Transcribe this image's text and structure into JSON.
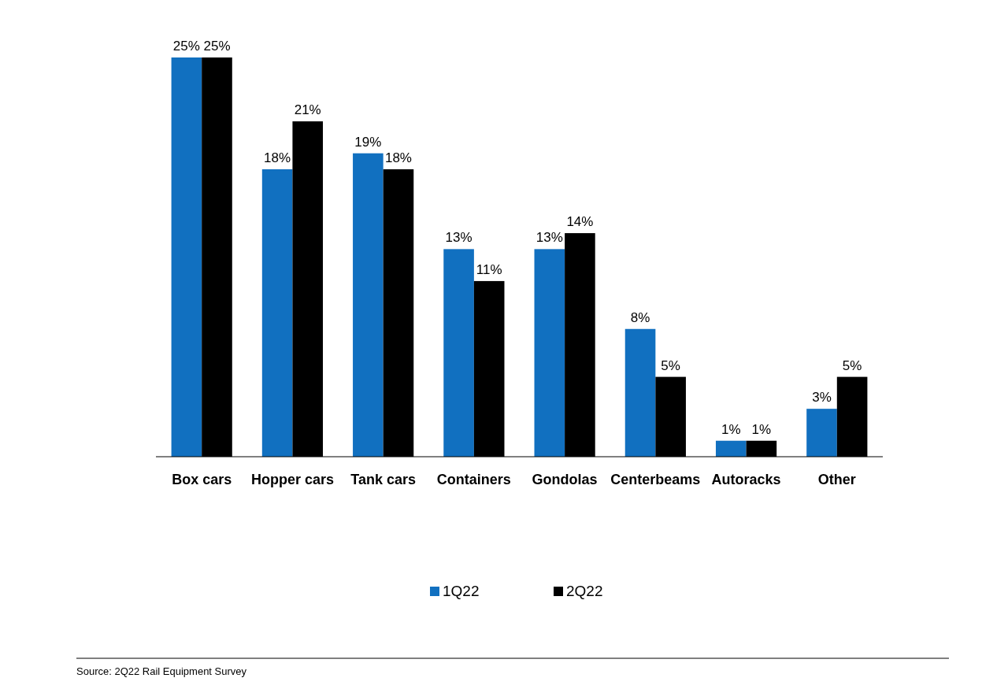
{
  "chart_data": {
    "type": "bar",
    "categories": [
      "Box cars",
      "Hopper cars",
      "Tank cars",
      "Containers",
      "Gondolas",
      "Centerbeams",
      "Autoracks",
      "Other"
    ],
    "series": [
      {
        "name": "1Q22",
        "color": "#1170c0",
        "values": [
          25,
          18,
          19,
          13,
          13,
          8,
          1,
          3
        ],
        "value_labels": [
          "25%",
          "18%",
          "19%",
          "13%",
          "13%",
          "8%",
          "1%",
          "3%"
        ]
      },
      {
        "name": "2Q22",
        "color": "#000000",
        "values": [
          25,
          21,
          18,
          11,
          14,
          5,
          1,
          5
        ],
        "value_labels": [
          "25%",
          "21%",
          "18%",
          "11%",
          "14%",
          "5%",
          "1%",
          "5%"
        ]
      }
    ],
    "legend": "bottom",
    "grid": false,
    "annotations": [
      "Source: 2Q22 Rail Equipment Survey"
    ]
  }
}
